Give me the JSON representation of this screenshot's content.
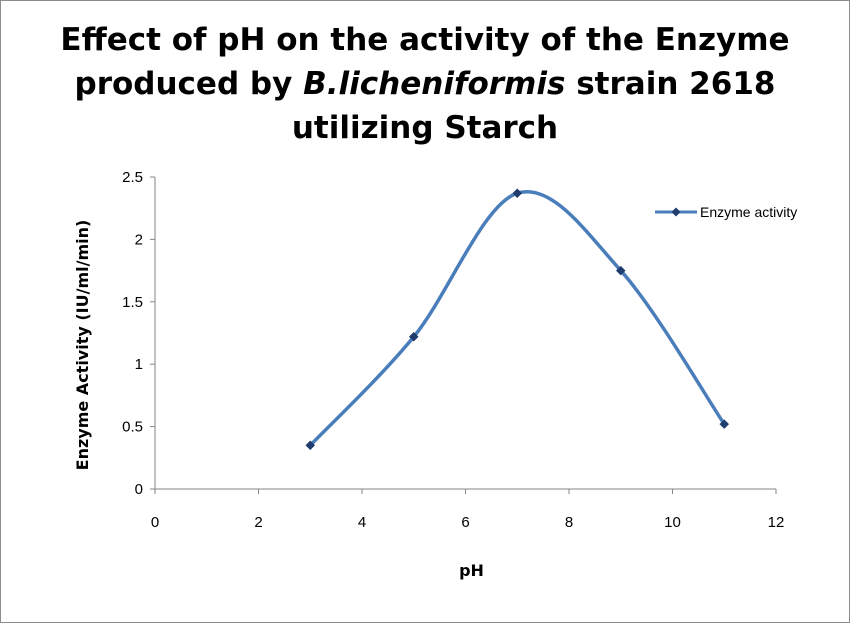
{
  "chart_data": {
    "type": "line",
    "title": {
      "line1": "Effect of pH on the activity of the Enzyme",
      "line2_prefix": "produced by ",
      "line2_italic": "B.licheniformis",
      "line2_suffix": " strain 2618",
      "line3": "utilizing Starch"
    },
    "xlabel": "pH",
    "ylabel": "Enzyme Activity (IU/ml/min)",
    "xlim": [
      0,
      12
    ],
    "ylim": [
      0,
      2.5
    ],
    "x_ticks": [
      0,
      2,
      4,
      6,
      8,
      10,
      12
    ],
    "x_tick_labels": [
      "0",
      "2",
      "4",
      "6",
      "8",
      "10",
      "12"
    ],
    "y_ticks": [
      0,
      0.5,
      1,
      1.5,
      2,
      2.5
    ],
    "y_tick_labels": [
      "0",
      "0.5",
      "1",
      "1.5",
      "2",
      "2.5"
    ],
    "grid": false,
    "legend_position": "top-right",
    "series": [
      {
        "name": "Enzyme activity",
        "color": "#4a7ebb",
        "marker_color": "#1f3d6e",
        "smooth": true,
        "x": [
          3,
          5,
          7,
          9,
          11
        ],
        "y": [
          0.35,
          1.22,
          2.37,
          1.75,
          0.52
        ]
      }
    ]
  }
}
